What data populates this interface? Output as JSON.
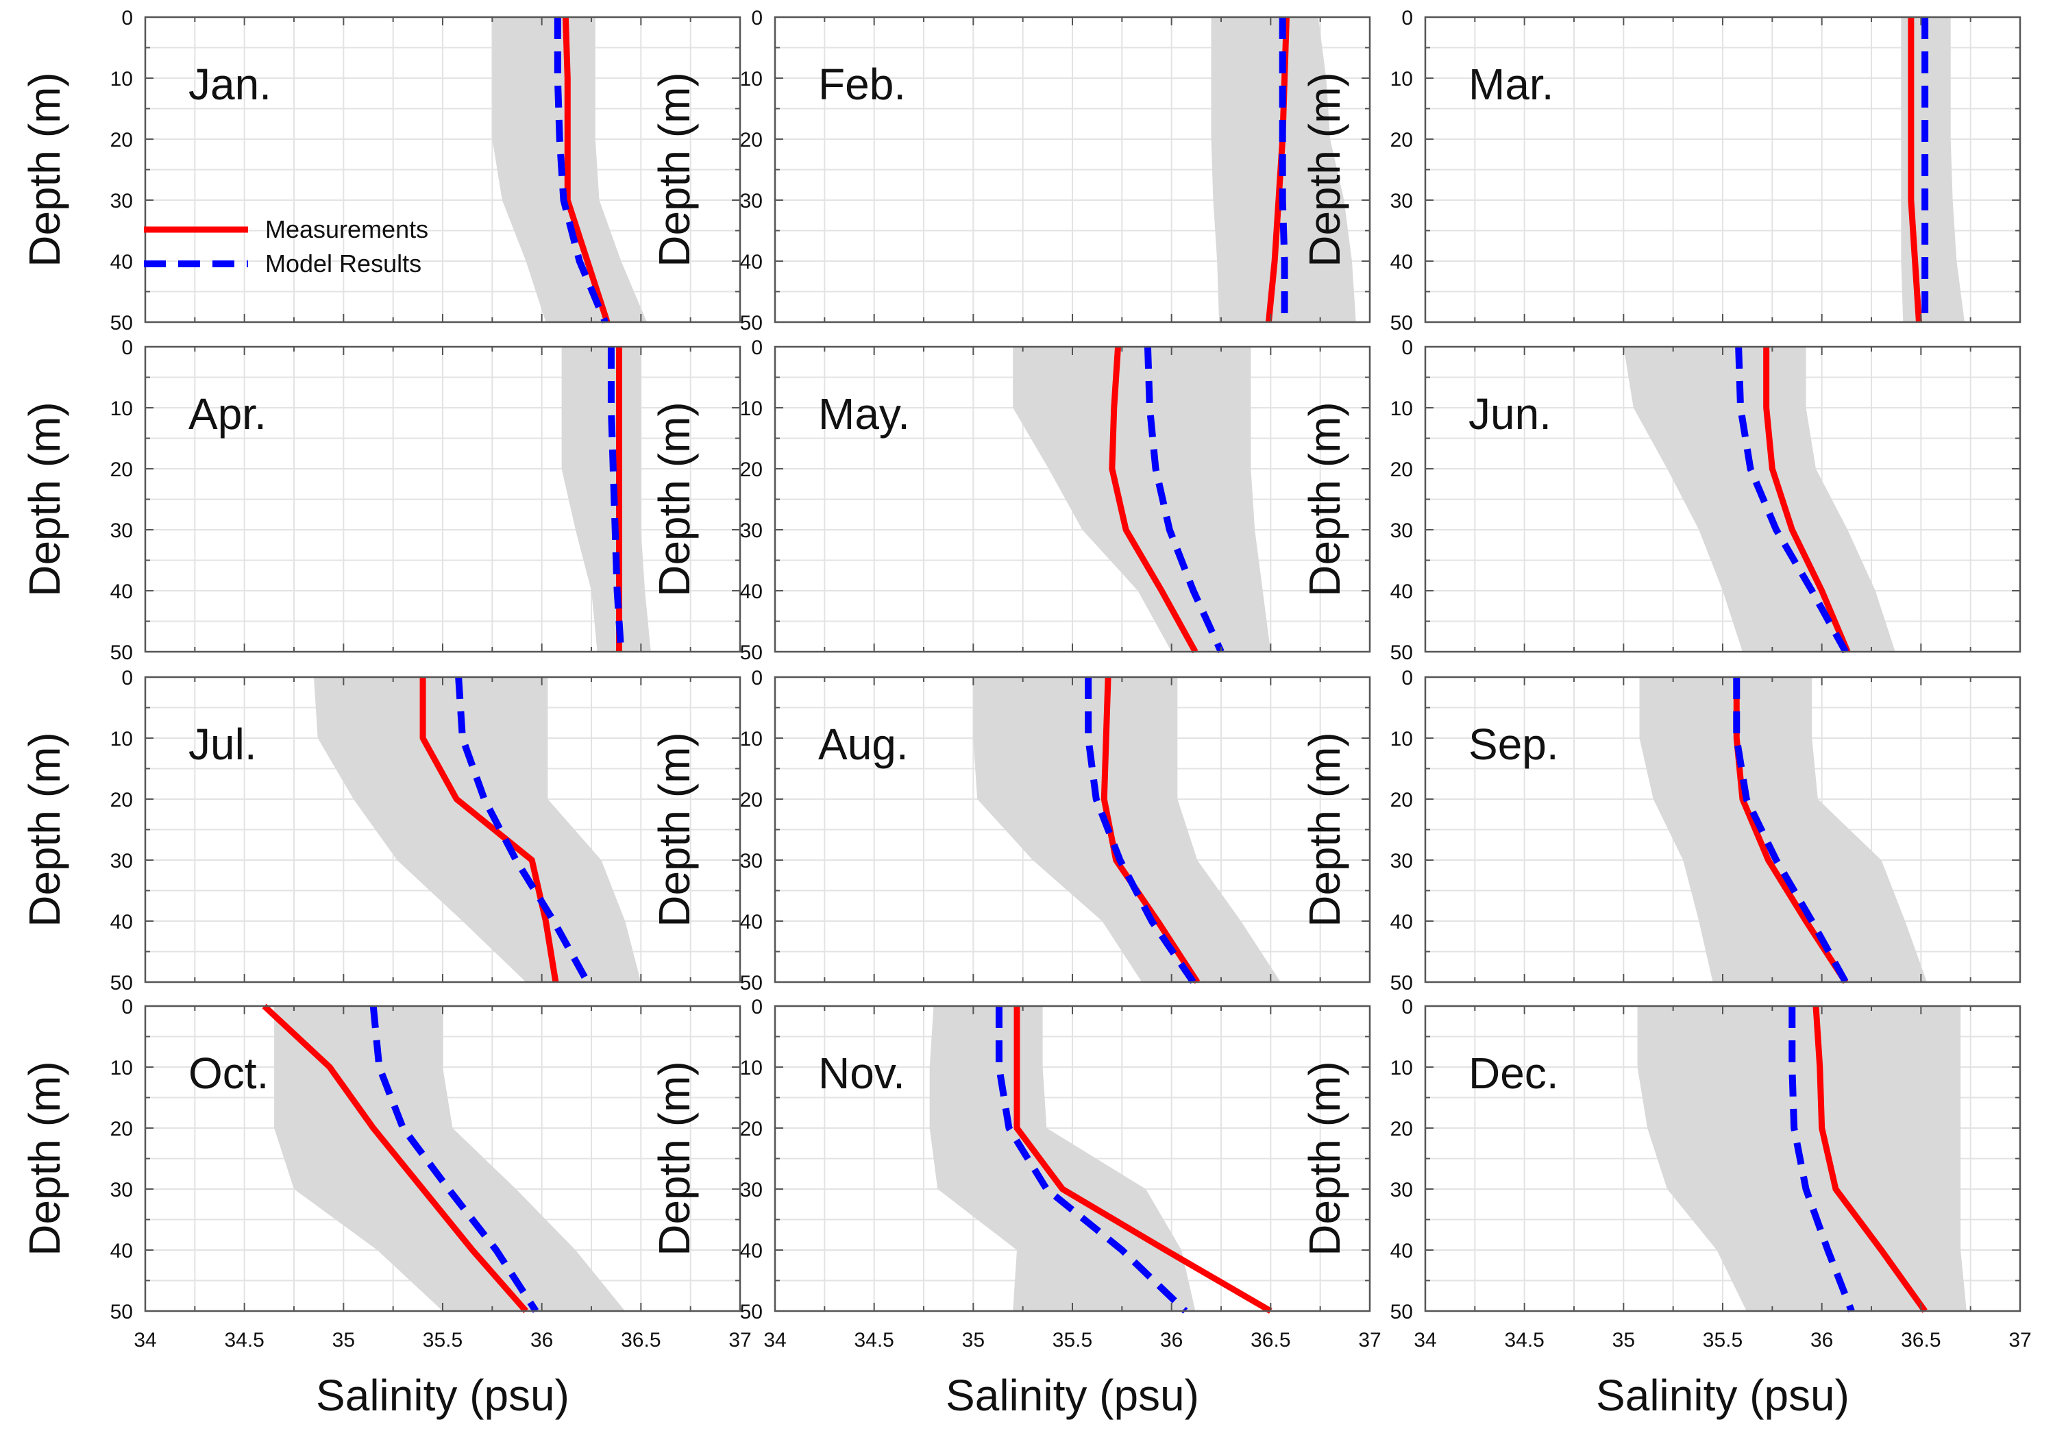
{
  "figure": {
    "xlabel": "Salinity (psu)",
    "ylabel": "Depth (m)",
    "xlim": [
      34,
      37
    ],
    "ylim": [
      0,
      50
    ],
    "y_inverted": true,
    "grid": true,
    "x_ticks": [
      "34",
      "34.5",
      "35",
      "35.5",
      "36",
      "36.5",
      "37"
    ],
    "y_ticks": [
      "0",
      "10",
      "20",
      "30",
      "40",
      "50"
    ],
    "colors": {
      "measurements": "#ff0000",
      "model": "#0000ff",
      "envelope": "#d9d9d9",
      "grid": "#e3e3e3",
      "axes": "#555555"
    },
    "legend": {
      "location": "lower-left of first panel",
      "items": [
        "Measurements",
        "Model Results"
      ]
    }
  },
  "chart_data": [
    {
      "type": "line",
      "title": "Jan.",
      "depth": [
        0,
        10,
        20,
        30,
        40,
        50
      ],
      "series": [
        {
          "name": "Measurements",
          "values": [
            36.12,
            36.13,
            36.13,
            36.13,
            36.23,
            36.33
          ]
        },
        {
          "name": "Model Results",
          "values": [
            36.08,
            36.08,
            36.09,
            36.11,
            36.19,
            36.32
          ]
        }
      ],
      "envelope": {
        "lower": [
          35.75,
          35.75,
          35.75,
          35.8,
          35.92,
          36.02
        ],
        "upper": [
          36.27,
          36.27,
          36.27,
          36.29,
          36.4,
          36.53
        ]
      }
    },
    {
      "type": "line",
      "title": "Feb.",
      "depth": [
        0,
        10,
        20,
        30,
        40,
        50
      ],
      "series": [
        {
          "name": "Measurements",
          "values": [
            36.58,
            36.57,
            36.56,
            36.54,
            36.52,
            36.49
          ]
        },
        {
          "name": "Model Results",
          "values": [
            36.56,
            36.56,
            36.56,
            36.56,
            36.57,
            36.57
          ]
        }
      ],
      "envelope": {
        "lower": [
          36.2,
          36.2,
          36.2,
          36.21,
          36.23,
          36.24
        ],
        "upper": [
          36.74,
          36.78,
          36.8,
          36.87,
          36.91,
          36.93
        ]
      }
    },
    {
      "type": "line",
      "title": "Mar.",
      "depth": [
        0,
        10,
        20,
        30,
        40,
        50
      ],
      "series": [
        {
          "name": "Measurements",
          "values": [
            36.45,
            36.45,
            36.45,
            36.45,
            36.47,
            36.49
          ]
        },
        {
          "name": "Model Results",
          "values": [
            36.52,
            36.52,
            36.52,
            36.52,
            36.52,
            36.52
          ]
        }
      ],
      "envelope": {
        "lower": [
          36.4,
          36.4,
          36.4,
          36.4,
          36.4,
          36.41
        ],
        "upper": [
          36.65,
          36.65,
          36.65,
          36.66,
          36.68,
          36.72
        ]
      }
    },
    {
      "type": "line",
      "title": "Apr.",
      "depth": [
        0,
        10,
        20,
        30,
        40,
        50
      ],
      "series": [
        {
          "name": "Measurements",
          "values": [
            36.39,
            36.39,
            36.39,
            36.39,
            36.39,
            36.39
          ]
        },
        {
          "name": "Model Results",
          "values": [
            36.35,
            36.35,
            36.36,
            36.37,
            36.38,
            36.4
          ]
        }
      ],
      "envelope": {
        "lower": [
          36.1,
          36.1,
          36.1,
          36.17,
          36.25,
          36.28
        ],
        "upper": [
          36.5,
          36.5,
          36.5,
          36.5,
          36.52,
          36.55
        ]
      }
    },
    {
      "type": "line",
      "title": "May.",
      "depth": [
        0,
        10,
        20,
        30,
        40,
        50
      ],
      "series": [
        {
          "name": "Measurements",
          "values": [
            35.73,
            35.71,
            35.7,
            35.77,
            35.95,
            36.12
          ]
        },
        {
          "name": "Model Results",
          "values": [
            35.88,
            35.89,
            35.92,
            35.99,
            36.11,
            36.25
          ]
        }
      ],
      "envelope": {
        "lower": [
          35.2,
          35.2,
          35.38,
          35.55,
          35.83,
          36.0
        ],
        "upper": [
          36.4,
          36.4,
          36.4,
          36.42,
          36.46,
          36.5
        ]
      }
    },
    {
      "type": "line",
      "title": "Jun.",
      "depth": [
        0,
        10,
        20,
        30,
        40,
        50
      ],
      "series": [
        {
          "name": "Measurements",
          "values": [
            35.72,
            35.72,
            35.75,
            35.85,
            36.0,
            36.13
          ]
        },
        {
          "name": "Model Results",
          "values": [
            35.58,
            35.59,
            35.64,
            35.77,
            35.95,
            36.12
          ]
        }
      ],
      "envelope": {
        "lower": [
          35.0,
          35.05,
          35.22,
          35.38,
          35.5,
          35.6
        ],
        "upper": [
          35.92,
          35.92,
          35.97,
          36.13,
          36.27,
          36.37
        ]
      }
    },
    {
      "type": "line",
      "title": "Jul.",
      "depth": [
        0,
        10,
        20,
        30,
        40,
        50
      ],
      "series": [
        {
          "name": "Measurements",
          "values": [
            35.4,
            35.4,
            35.57,
            35.95,
            36.02,
            36.07
          ]
        },
        {
          "name": "Model Results",
          "values": [
            35.58,
            35.6,
            35.71,
            35.87,
            36.06,
            36.23
          ]
        }
      ],
      "envelope": {
        "lower": [
          34.85,
          34.87,
          35.05,
          35.27,
          35.6,
          35.92
        ],
        "upper": [
          36.03,
          36.03,
          36.03,
          36.3,
          36.42,
          36.5
        ]
      }
    },
    {
      "type": "line",
      "title": "Aug.",
      "depth": [
        0,
        10,
        20,
        30,
        40,
        50
      ],
      "series": [
        {
          "name": "Measurements",
          "values": [
            35.68,
            35.67,
            35.66,
            35.72,
            35.93,
            36.13
          ]
        },
        {
          "name": "Model Results",
          "values": [
            35.58,
            35.58,
            35.62,
            35.74,
            35.9,
            36.11
          ]
        }
      ],
      "envelope": {
        "lower": [
          35.0,
          35.0,
          35.02,
          35.3,
          35.65,
          35.85
        ],
        "upper": [
          36.03,
          36.03,
          36.03,
          36.13,
          36.35,
          36.55
        ]
      }
    },
    {
      "type": "line",
      "title": "Sep.",
      "depth": [
        0,
        10,
        20,
        30,
        40,
        50
      ],
      "series": [
        {
          "name": "Measurements",
          "values": [
            35.57,
            35.57,
            35.6,
            35.73,
            35.92,
            36.12
          ]
        },
        {
          "name": "Model Results",
          "values": [
            35.57,
            35.57,
            35.62,
            35.77,
            35.95,
            36.12
          ]
        }
      ],
      "envelope": {
        "lower": [
          35.08,
          35.08,
          35.15,
          35.3,
          35.38,
          35.45
        ],
        "upper": [
          35.95,
          35.95,
          35.98,
          36.3,
          36.42,
          36.53
        ]
      }
    },
    {
      "type": "line",
      "title": "Oct.",
      "depth": [
        0,
        10,
        20,
        30,
        40,
        50
      ],
      "series": [
        {
          "name": "Measurements",
          "values": [
            34.6,
            34.93,
            35.15,
            35.4,
            35.65,
            35.92
          ]
        },
        {
          "name": "Model Results",
          "values": [
            35.15,
            35.18,
            35.3,
            35.53,
            35.77,
            35.97
          ]
        }
      ],
      "envelope": {
        "lower": [
          34.65,
          34.65,
          34.65,
          34.75,
          35.17,
          35.5
        ],
        "upper": [
          35.5,
          35.5,
          35.55,
          35.87,
          36.17,
          36.42
        ]
      }
    },
    {
      "type": "line",
      "title": "Nov.",
      "depth": [
        0,
        10,
        20,
        30,
        40,
        50
      ],
      "series": [
        {
          "name": "Measurements",
          "values": [
            35.22,
            35.22,
            35.22,
            35.45,
            35.97,
            36.5
          ]
        },
        {
          "name": "Model Results",
          "values": [
            35.13,
            35.13,
            35.18,
            35.37,
            35.75,
            36.07
          ]
        }
      ],
      "envelope": {
        "lower": [
          34.8,
          34.78,
          34.78,
          34.82,
          35.22,
          35.2
        ],
        "upper": [
          35.35,
          35.35,
          35.37,
          35.87,
          36.05,
          36.12
        ]
      }
    },
    {
      "type": "line",
      "title": "Dec.",
      "depth": [
        0,
        10,
        20,
        30,
        40,
        50
      ],
      "series": [
        {
          "name": "Measurements",
          "values": [
            35.97,
            35.99,
            36.0,
            36.07,
            36.3,
            36.52
          ]
        },
        {
          "name": "Model Results",
          "values": [
            35.85,
            35.85,
            35.86,
            35.92,
            36.03,
            36.15
          ]
        }
      ],
      "envelope": {
        "lower": [
          35.07,
          35.07,
          35.12,
          35.22,
          35.47,
          35.62
        ],
        "upper": [
          36.7,
          36.7,
          36.7,
          36.7,
          36.7,
          36.73
        ]
      }
    }
  ]
}
